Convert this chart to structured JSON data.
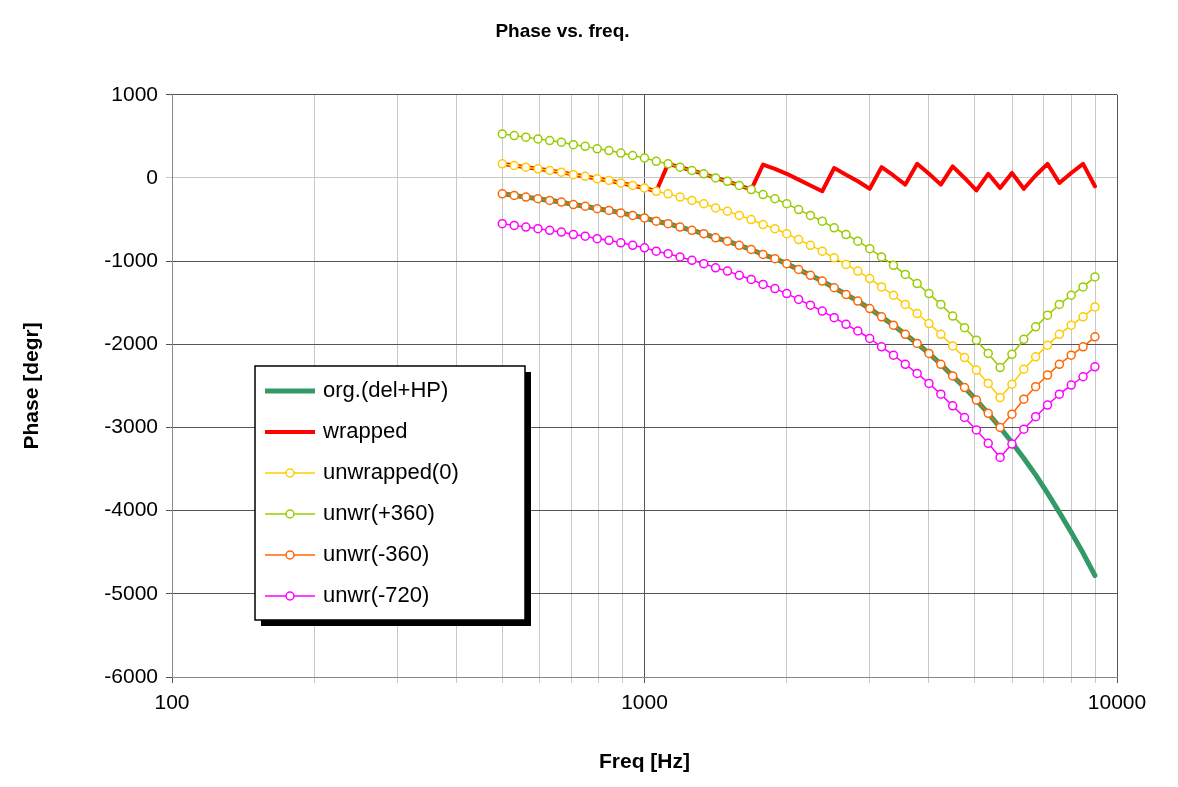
{
  "chart_data": {
    "type": "line",
    "title": "Phase vs. freq.",
    "xlabel": "Freq [Hz]",
    "ylabel": "Phase [degr]",
    "log": "x",
    "grid": true,
    "legend": "bottom left",
    "xlim": [
      100,
      10000
    ],
    "ylim": [
      -6000,
      1000
    ],
    "xticks": [
      100,
      {
        "value": 200,
        "label": null
      },
      {
        "value": 300,
        "label": null
      },
      {
        "value": 400,
        "label": null
      },
      {
        "value": 500,
        "label": null
      },
      {
        "value": 600,
        "label": null
      },
      {
        "value": 700,
        "label": null
      },
      {
        "value": 800,
        "label": null
      },
      {
        "value": 900,
        "label": null
      },
      1000,
      {
        "value": 2000,
        "label": null
      },
      {
        "value": 3000,
        "label": null
      },
      {
        "value": 4000,
        "label": null
      },
      {
        "value": 5000,
        "label": null
      },
      {
        "value": 6000,
        "label": null
      },
      {
        "value": 7000,
        "label": null
      },
      {
        "value": 8000,
        "label": null
      },
      {
        "value": 9000,
        "label": null
      },
      10000
    ],
    "yticks": [
      -6000,
      -5000,
      -4000,
      -3000,
      -2000,
      -1000,
      0,
      1000
    ],
    "x": [
      500,
      530,
      561,
      595,
      630,
      667,
      707,
      749,
      794,
      841,
      891,
      944,
      1000,
      1059,
      1122,
      1189,
      1260,
      1335,
      1414,
      1498,
      1587,
      1682,
      1782,
      1888,
      2000,
      2119,
      2245,
      2378,
      2520,
      2670,
      2828,
      2997,
      3175,
      3364,
      3564,
      3776,
      4000,
      4238,
      4490,
      4757,
      5040,
      5339,
      5657,
      5993,
      6350,
      6727,
      7127,
      7551,
      8000,
      8476,
      8980
    ],
    "series": [
      {
        "name": "org.(del+HP)",
        "color": "#339966",
        "marker": "none",
        "values": [
          -190,
          -210,
          -230,
          -250,
          -270,
          -290,
          -320,
          -340,
          -370,
          -390,
          -420,
          -450,
          -480,
          -520,
          -550,
          -590,
          -630,
          -670,
          -720,
          -760,
          -810,
          -860,
          -920,
          -970,
          -1030,
          -1100,
          -1170,
          -1240,
          -1320,
          -1400,
          -1480,
          -1570,
          -1670,
          -1770,
          -1880,
          -1990,
          -2110,
          -2240,
          -2380,
          -2520,
          -2670,
          -2830,
          -3000,
          -3180,
          -3370,
          -3570,
          -3790,
          -4020,
          -4260,
          -4510,
          -4780
        ]
      },
      {
        "name": "wrapped",
        "color": "#ff0000",
        "marker": "none",
        "values": [
          170,
          150,
          130,
          110,
          90,
          70,
          40,
          20,
          -10,
          -30,
          -60,
          -90,
          -120,
          -160,
          170,
          130,
          90,
          50,
          0,
          -40,
          -90,
          -140,
          160,
          110,
          50,
          -20,
          -90,
          -160,
          120,
          40,
          -40,
          -130,
          130,
          30,
          -80,
          170,
          50,
          -80,
          140,
          0,
          -150,
          50,
          -120,
          60,
          -130,
          30,
          170,
          -60,
          60,
          170,
          -100
        ]
      },
      {
        "name": "unwrapped(0)",
        "color": "#ffcc00",
        "marker": "circle",
        "values": [
          170,
          150,
          130,
          110,
          90,
          70,
          40,
          20,
          -10,
          -30,
          -60,
          -90,
          -120,
          -160,
          -190,
          -230,
          -270,
          -310,
          -360,
          -400,
          -450,
          -500,
          -560,
          -610,
          -670,
          -740,
          -810,
          -880,
          -960,
          -1040,
          -1120,
          -1210,
          -1310,
          -1410,
          -1520,
          -1630,
          -1750,
          -1880,
          -2020,
          -2160,
          -2310,
          -2470,
          -2640,
          -2480,
          -2300,
          -2150,
          -2010,
          -1880,
          -1770,
          -1670,
          -1550
        ]
      },
      {
        "name": "unwr(+360)",
        "color": "#99cc00",
        "marker": "circle",
        "values": [
          530,
          510,
          490,
          470,
          450,
          430,
          400,
          380,
          350,
          330,
          300,
          270,
          240,
          200,
          170,
          130,
          90,
          50,
          0,
          -40,
          -90,
          -140,
          -200,
          -250,
          -310,
          -380,
          -450,
          -520,
          -600,
          -680,
          -760,
          -850,
          -950,
          -1050,
          -1160,
          -1270,
          -1390,
          -1520,
          -1660,
          -1800,
          -1950,
          -2110,
          -2280,
          -2120,
          -1940,
          -1790,
          -1650,
          -1520,
          -1410,
          -1310,
          -1190
        ]
      },
      {
        "name": "unwr(-360)",
        "color": "#ff6600",
        "marker": "circle",
        "values": [
          -190,
          -210,
          -230,
          -250,
          -270,
          -290,
          -320,
          -340,
          -370,
          -390,
          -420,
          -450,
          -480,
          -520,
          -550,
          -590,
          -630,
          -670,
          -720,
          -760,
          -810,
          -860,
          -920,
          -970,
          -1030,
          -1100,
          -1170,
          -1240,
          -1320,
          -1400,
          -1480,
          -1570,
          -1670,
          -1770,
          -1880,
          -1990,
          -2110,
          -2240,
          -2380,
          -2520,
          -2670,
          -2830,
          -3000,
          -2840,
          -2660,
          -2510,
          -2370,
          -2240,
          -2130,
          -2030,
          -1910
        ]
      },
      {
        "name": "unwr(-720)",
        "color": "#ff00ff",
        "marker": "circle",
        "values": [
          -550,
          -570,
          -590,
          -610,
          -630,
          -650,
          -680,
          -700,
          -730,
          -750,
          -780,
          -810,
          -840,
          -880,
          -910,
          -950,
          -990,
          -1030,
          -1080,
          -1120,
          -1170,
          -1220,
          -1280,
          -1330,
          -1390,
          -1460,
          -1530,
          -1600,
          -1680,
          -1760,
          -1840,
          -1930,
          -2030,
          -2130,
          -2240,
          -2350,
          -2470,
          -2600,
          -2740,
          -2880,
          -3030,
          -3190,
          -3360,
          -3200,
          -3020,
          -2870,
          -2730,
          -2600,
          -2490,
          -2390,
          -2270
        ]
      }
    ]
  }
}
